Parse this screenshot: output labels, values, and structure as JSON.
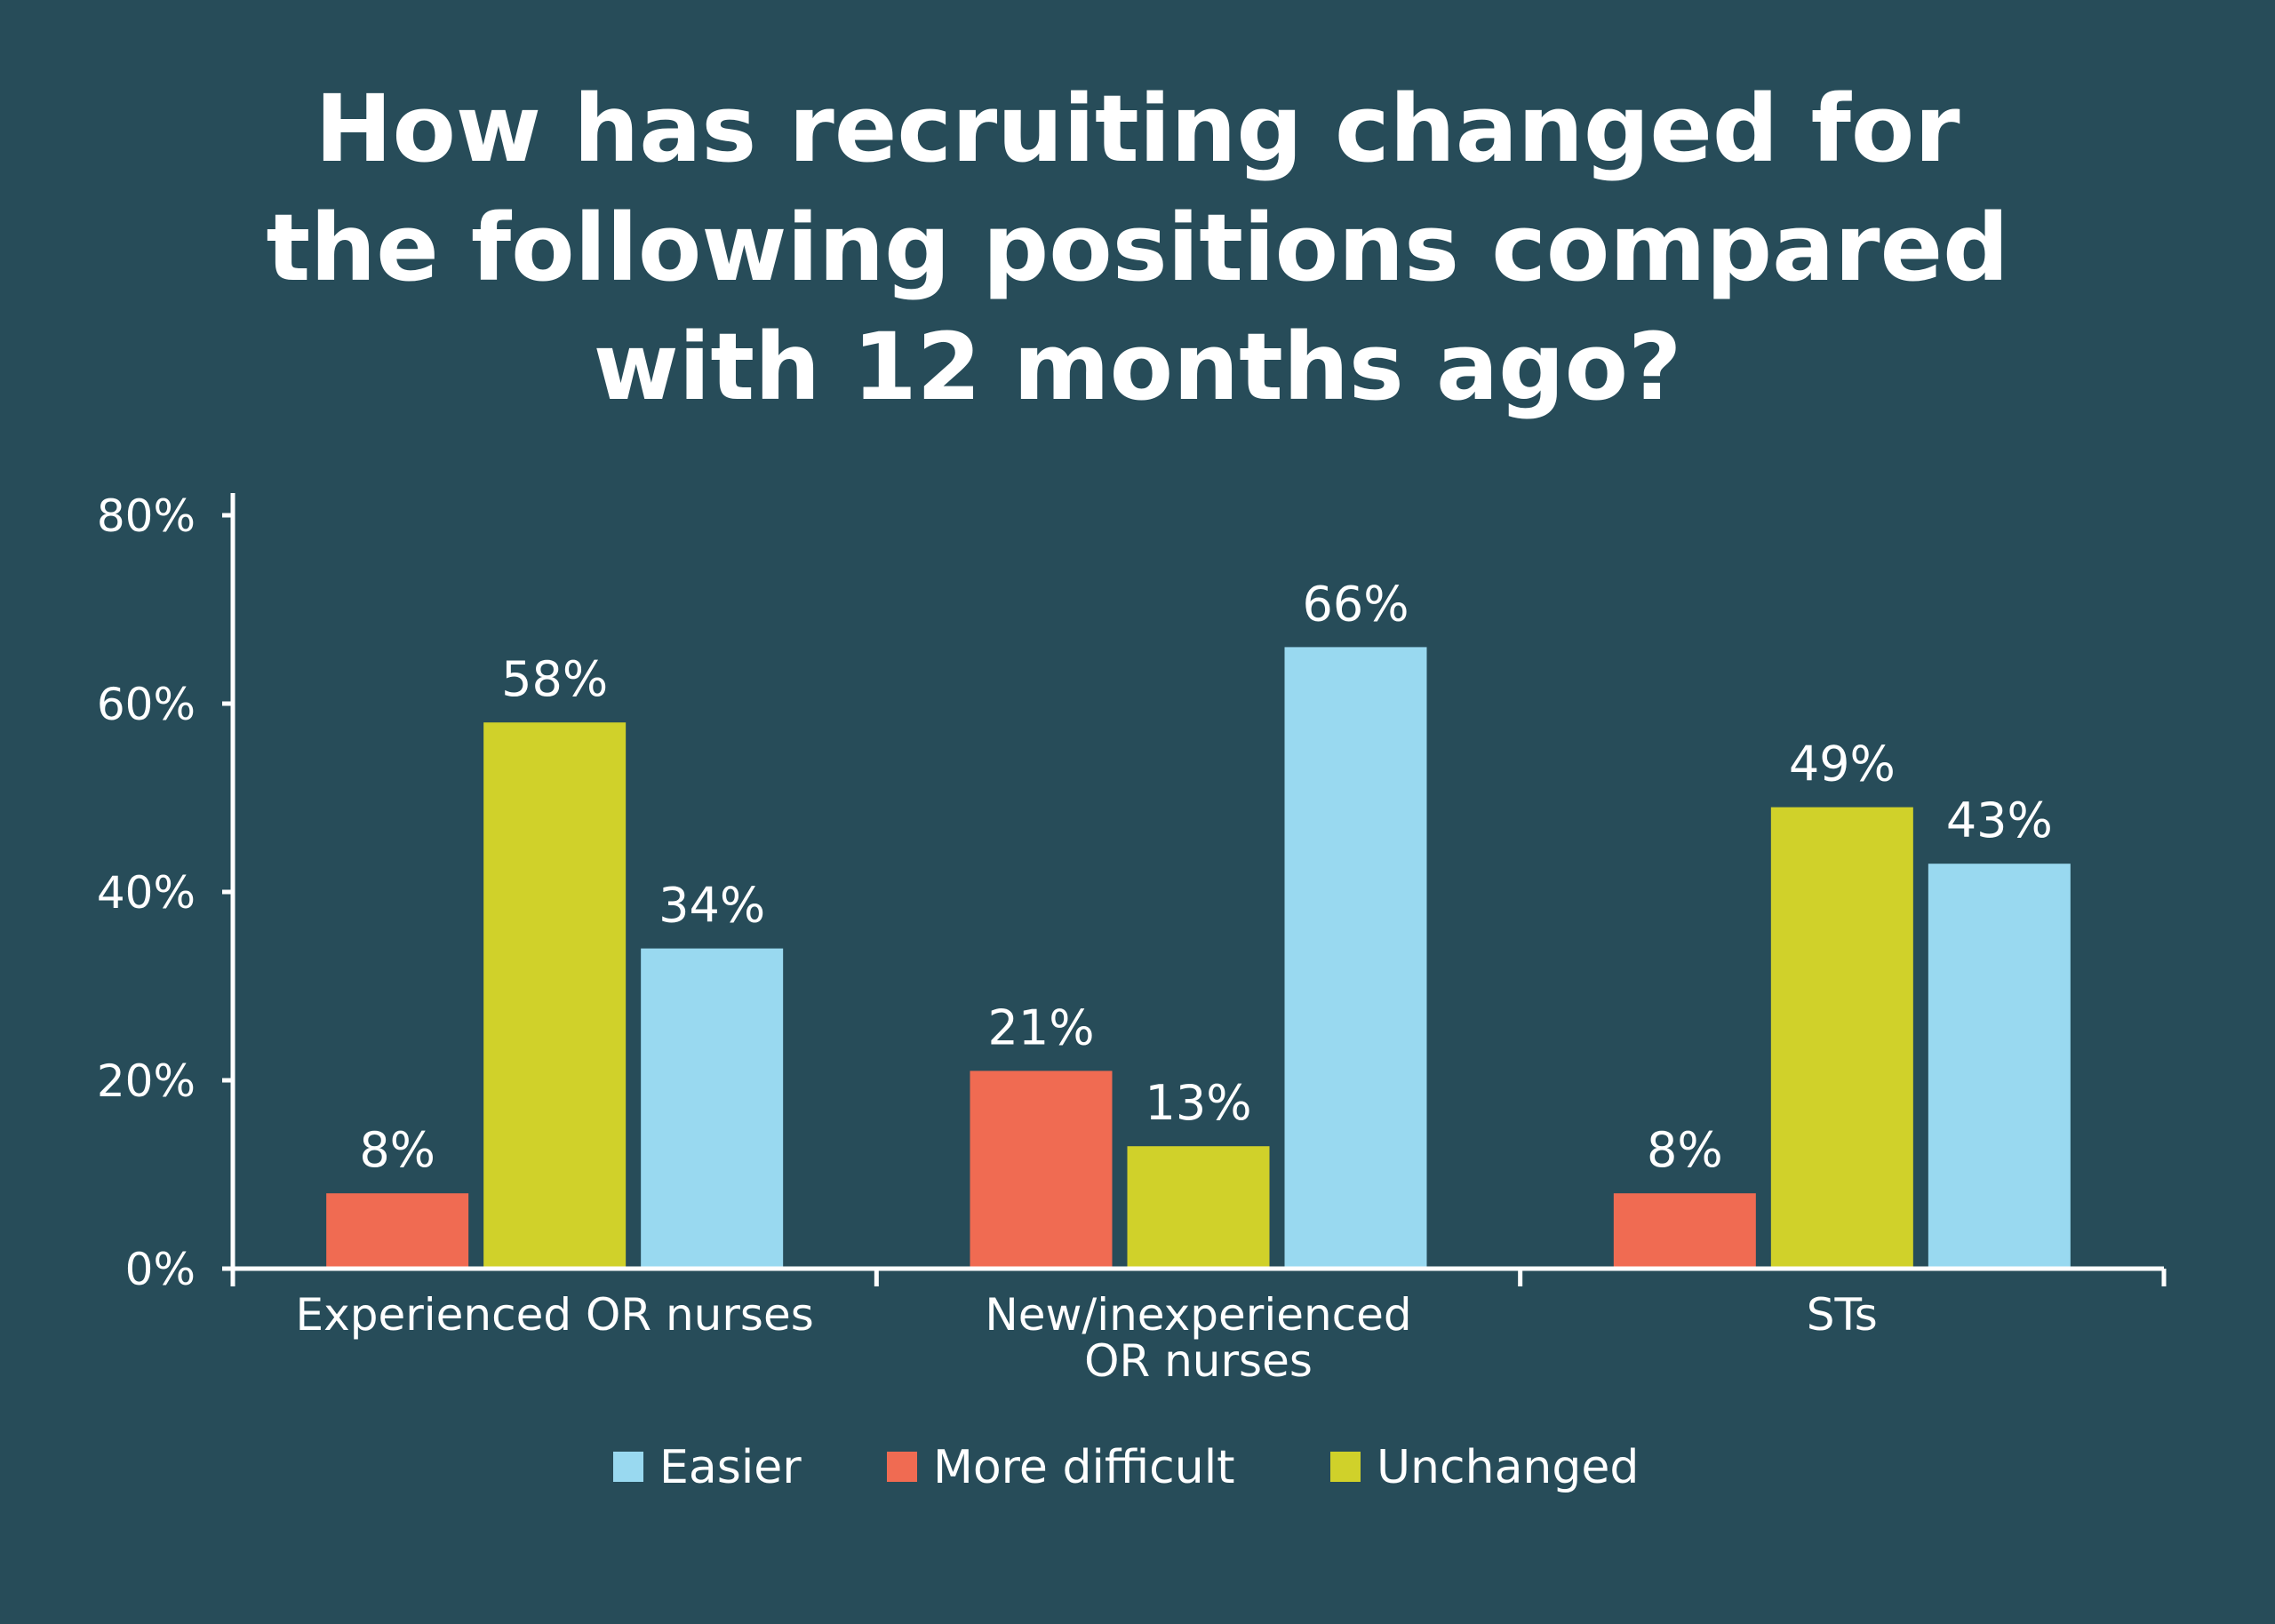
{
  "chart_data": {
    "type": "bar",
    "title": "How has recruiting changed for the following positions compared with 12 months ago?",
    "title_lines": [
      "How has recruiting changed for",
      "the following positions compared",
      "with 12 months ago?"
    ],
    "categories": [
      [
        "Experienced OR nurses"
      ],
      [
        "New/inexperienced",
        "OR nurses"
      ],
      [
        "STs"
      ]
    ],
    "series": [
      {
        "name": "More difficult",
        "color": "#f06b52",
        "values": [
          8,
          21,
          8
        ],
        "labels": [
          "8%",
          "21%",
          "8%"
        ]
      },
      {
        "name": "Unchanged",
        "color": "#d0d12a",
        "values": [
          58,
          13,
          49
        ],
        "labels": [
          "58%",
          "13%",
          "49%"
        ]
      },
      {
        "name": "Easier",
        "color": "#99d9f0",
        "values": [
          34,
          66,
          43
        ],
        "labels": [
          "34%",
          "66%",
          "43%"
        ]
      }
    ],
    "legend_order": [
      "Easier",
      "More difficult",
      "Unchanged"
    ],
    "legend_position": "bottom",
    "yticks": [
      "0%",
      "20%",
      "40%",
      "60%",
      "80%"
    ],
    "ylim": [
      0,
      80
    ],
    "grid": false
  }
}
